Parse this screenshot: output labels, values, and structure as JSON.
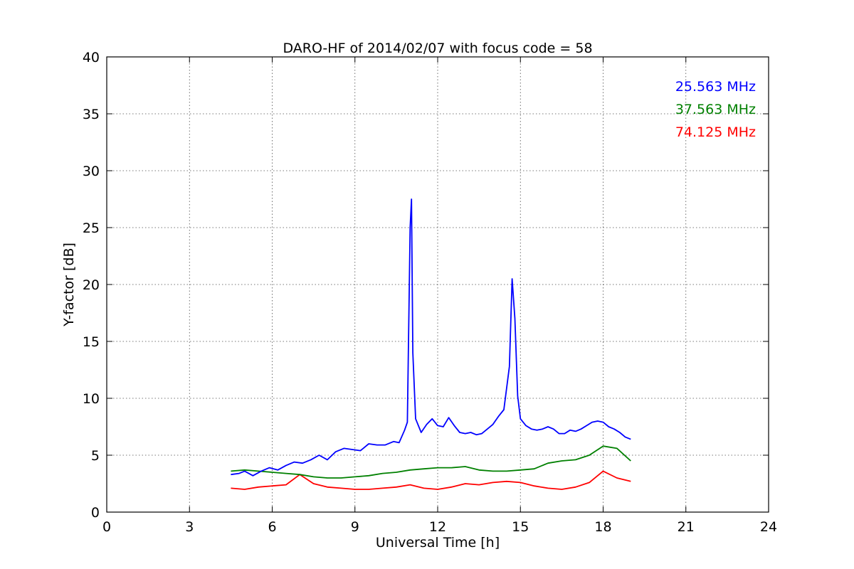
{
  "chart_data": {
    "type": "line",
    "title": "DARO-HF of 2014/02/07 with focus code = 58",
    "xlabel": "Universal Time [h]",
    "ylabel": "Y-factor [dB]",
    "xlim": [
      0,
      24
    ],
    "ylim": [
      0,
      40
    ],
    "xticks": [
      0,
      3,
      6,
      9,
      12,
      15,
      18,
      21,
      24
    ],
    "yticks": [
      0,
      5,
      10,
      15,
      20,
      25,
      30,
      35,
      40
    ],
    "grid": true,
    "legend_placement": "top-right",
    "series": [
      {
        "name": "25.563 MHz",
        "color": "#0000ff",
        "x": [
          4.5,
          4.8,
          5.0,
          5.3,
          5.6,
          5.9,
          6.2,
          6.5,
          6.8,
          7.1,
          7.4,
          7.7,
          8.0,
          8.3,
          8.6,
          8.9,
          9.2,
          9.5,
          9.8,
          10.1,
          10.4,
          10.6,
          10.8,
          10.9,
          11.0,
          11.05,
          11.1,
          11.2,
          11.4,
          11.6,
          11.8,
          12.0,
          12.2,
          12.4,
          12.6,
          12.8,
          13.0,
          13.2,
          13.4,
          13.6,
          13.8,
          14.0,
          14.2,
          14.4,
          14.6,
          14.7,
          14.8,
          14.9,
          15.0,
          15.2,
          15.4,
          15.6,
          15.8,
          16.0,
          16.2,
          16.4,
          16.6,
          16.8,
          17.0,
          17.2,
          17.4,
          17.6,
          17.8,
          18.0,
          18.2,
          18.4,
          18.6,
          18.8,
          19.0
        ],
        "values": [
          3.3,
          3.4,
          3.6,
          3.2,
          3.6,
          3.9,
          3.7,
          4.1,
          4.4,
          4.3,
          4.6,
          5.0,
          4.6,
          5.3,
          5.6,
          5.5,
          5.4,
          6.0,
          5.9,
          5.9,
          6.2,
          6.1,
          7.2,
          7.9,
          25.0,
          27.5,
          14.0,
          8.2,
          7.0,
          7.7,
          8.2,
          7.6,
          7.5,
          8.3,
          7.6,
          7.0,
          6.9,
          7.0,
          6.8,
          6.9,
          7.3,
          7.7,
          8.4,
          9.0,
          12.8,
          20.5,
          17.0,
          10.2,
          8.2,
          7.6,
          7.3,
          7.2,
          7.3,
          7.5,
          7.3,
          6.9,
          6.9,
          7.2,
          7.1,
          7.3,
          7.6,
          7.9,
          8.0,
          7.9,
          7.5,
          7.3,
          7.0,
          6.6,
          6.4
        ]
      },
      {
        "name": "37.563 MHz",
        "color": "#008000",
        "x": [
          4.5,
          5.0,
          5.5,
          6.0,
          6.5,
          7.0,
          7.5,
          8.0,
          8.5,
          9.0,
          9.5,
          10.0,
          10.5,
          11.0,
          11.5,
          12.0,
          12.5,
          13.0,
          13.5,
          14.0,
          14.5,
          15.0,
          15.5,
          16.0,
          16.5,
          17.0,
          17.5,
          18.0,
          18.5,
          19.0
        ],
        "values": [
          3.6,
          3.7,
          3.6,
          3.5,
          3.4,
          3.3,
          3.1,
          3.0,
          3.0,
          3.1,
          3.2,
          3.4,
          3.5,
          3.7,
          3.8,
          3.9,
          3.9,
          4.0,
          3.7,
          3.6,
          3.6,
          3.7,
          3.8,
          4.3,
          4.5,
          4.6,
          5.0,
          5.8,
          5.6,
          4.5
        ]
      },
      {
        "name": "74.125 MHz",
        "color": "#ff0000",
        "x": [
          4.5,
          5.0,
          5.5,
          6.0,
          6.5,
          7.0,
          7.5,
          8.0,
          8.5,
          9.0,
          9.5,
          10.0,
          10.5,
          11.0,
          11.5,
          12.0,
          12.5,
          13.0,
          13.5,
          14.0,
          14.5,
          15.0,
          15.5,
          16.0,
          16.5,
          17.0,
          17.5,
          18.0,
          18.5,
          19.0
        ],
        "values": [
          2.1,
          2.0,
          2.2,
          2.3,
          2.4,
          3.3,
          2.5,
          2.2,
          2.1,
          2.0,
          2.0,
          2.1,
          2.2,
          2.4,
          2.1,
          2.0,
          2.2,
          2.5,
          2.4,
          2.6,
          2.7,
          2.6,
          2.3,
          2.1,
          2.0,
          2.2,
          2.6,
          3.6,
          3.0,
          2.7
        ]
      }
    ]
  }
}
